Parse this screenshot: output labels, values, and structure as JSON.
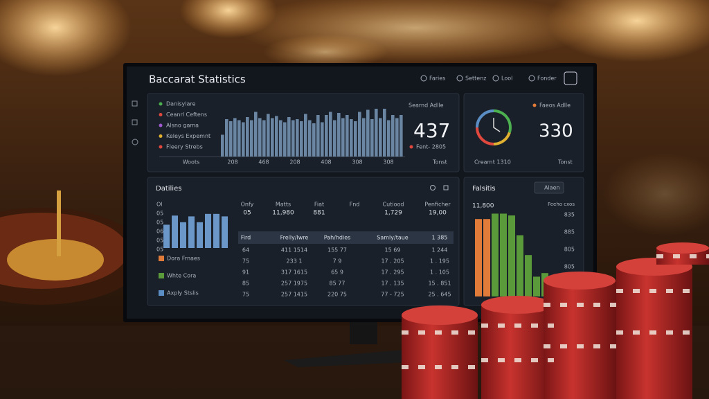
{
  "header": {
    "title": "Baccarat Statistics",
    "nav": [
      "Faries",
      "Settenz",
      "Lool",
      "Fonder"
    ]
  },
  "overview": {
    "legend": [
      {
        "label": "Danisylare",
        "color": "#4caf50"
      },
      {
        "label": "Ceanrl Ceftens",
        "color": "#e0483e"
      },
      {
        "label": "Alsno gama",
        "color": "#a05ad0"
      },
      {
        "label": "Keleys Expemnt",
        "color": "#e0b030"
      },
      {
        "label": "Fleery Strebs",
        "color": "#e0483e"
      }
    ],
    "bars": [
      42,
      72,
      68,
      74,
      70,
      66,
      76,
      70,
      86,
      74,
      70,
      82,
      74,
      78,
      70,
      66,
      76,
      70,
      72,
      68,
      82,
      70,
      64,
      80,
      66,
      80,
      86,
      70,
      84,
      74,
      80,
      72,
      68,
      86,
      74,
      90,
      72,
      92,
      74,
      92,
      70,
      80,
      74,
      80
    ],
    "x_labels": [
      "Woots",
      "208",
      "468",
      "208",
      "408",
      "308",
      "308"
    ],
    "stat_title": "Searnd Adlle",
    "stat_value": 437,
    "stat_sub": "Fent- 2805",
    "stat_footer": "Tonst"
  },
  "gauge": {
    "title": "Faeos Adlle",
    "value": 330,
    "sub": "Crearnt 1310",
    "footer": "Tonst"
  },
  "details": {
    "title": "Datilies",
    "y_labels": [
      "Ol",
      "05",
      "05",
      "06",
      "05",
      "05"
    ],
    "bars": [
      56,
      78,
      62,
      76,
      62,
      82,
      82,
      76
    ],
    "legend": [
      {
        "label": "Dora Frnaes",
        "color": "#e07b39"
      },
      {
        "label": "Whte Cora",
        "color": "#5a9a3a"
      },
      {
        "label": "Axply Stslis",
        "color": "#5b8ec4"
      }
    ],
    "columns": [
      "Onfy",
      "Matts",
      "Fiat",
      "Fnd",
      "Cutiood",
      "Penficher"
    ],
    "summary": [
      "05",
      "11,980",
      "881",
      "",
      "1,729",
      "19,00"
    ],
    "table": {
      "header": [
        "Fird",
        "Frelly/lwre",
        "Pah/hdies",
        "Samly/taue",
        "1  385"
      ],
      "rows": [
        [
          "64",
          "411  1514",
          "155  77",
          "15  69",
          "1  244"
        ],
        [
          "75",
          "233  1",
          "7  9",
          "17 . 205",
          "1 . 195"
        ],
        [
          "91",
          "317  1615",
          "65  9",
          "17 . 295",
          "1 . 105"
        ],
        [
          "85",
          "257  1975",
          "85  77",
          "17 . 135",
          "15 . 851"
        ],
        [
          "75",
          "257  1415",
          "220  75",
          "77 - 725",
          "25 . 645"
        ]
      ]
    }
  },
  "falsitis": {
    "title": "Falsitis",
    "button": "Alaen",
    "top_left": "11,800",
    "top_right": "Feeho cxos",
    "y_labels": [
      "835",
      "885",
      "805",
      "805"
    ],
    "bars": [
      {
        "value": 86,
        "color": "#e07b39"
      },
      {
        "value": 86,
        "color": "#e07b39"
      },
      {
        "value": 92,
        "color": "#5a9a3a"
      },
      {
        "value": 92,
        "color": "#5a9a3a"
      },
      {
        "value": 90,
        "color": "#5a9a3a"
      },
      {
        "value": 68,
        "color": "#5a9a3a"
      },
      {
        "value": 46,
        "color": "#5a9a3a"
      },
      {
        "value": 22,
        "color": "#5a9a3a"
      },
      {
        "value": 26,
        "color": "#5a9a3a"
      }
    ]
  }
}
